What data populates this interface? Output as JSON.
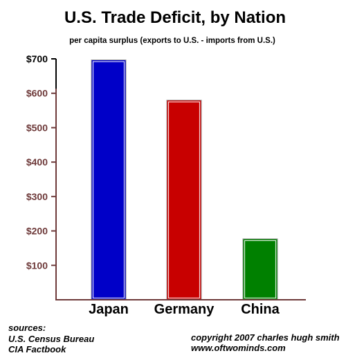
{
  "chart_data": {
    "type": "bar",
    "title": "U.S. Trade Deficit, by Nation",
    "subtitle": "per capita surplus (exports to U.S. - imports from U.S.)",
    "categories": [
      "Japan",
      "Germany",
      "China"
    ],
    "values": [
      697,
      580,
      177
    ],
    "ylim": [
      0,
      700
    ],
    "yticks": [
      100,
      200,
      300,
      400,
      500,
      600,
      700
    ],
    "ytick_labels": [
      "$100",
      "$200",
      "$300",
      "$400",
      "$500",
      "$600",
      "$700"
    ],
    "colors": [
      "#0000c8",
      "#c80000",
      "#008000"
    ],
    "grid": false,
    "legend": "none"
  },
  "footer": {
    "sources_heading": "sources:",
    "source_1": "U.S. Census Bureau",
    "source_2": "CIA Factbook",
    "copyright": "copyright 2007 charles hugh smith",
    "website": "www.oftwominds.com"
  }
}
